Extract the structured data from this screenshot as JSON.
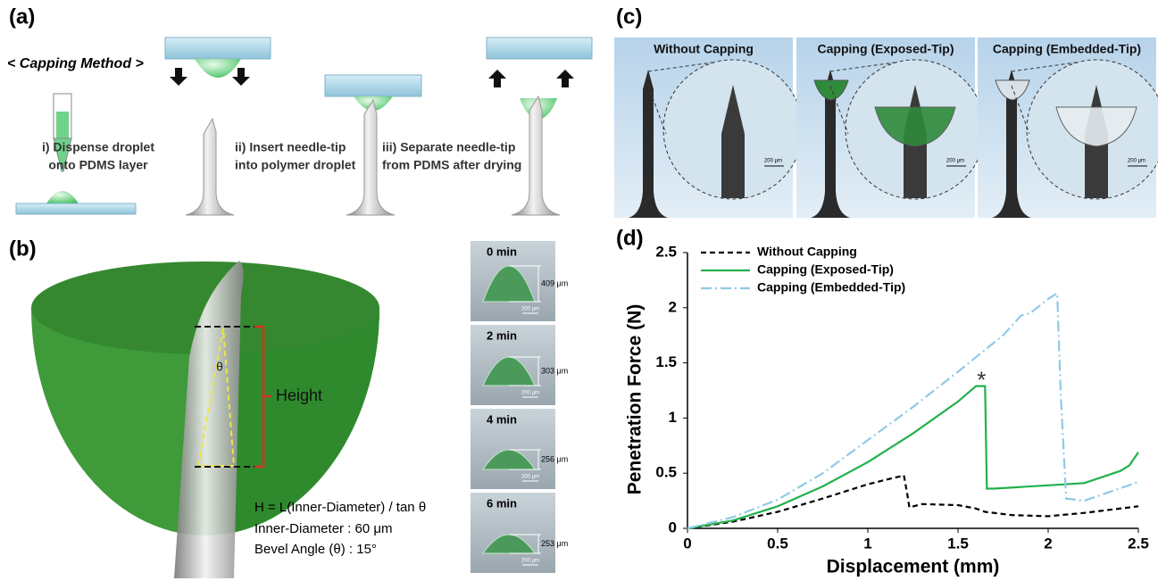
{
  "panel_a": {
    "label": "(a)",
    "method_title": "< Capping Method >",
    "steps": [
      [
        "i) Dispense droplet",
        "onto PDMS layer"
      ],
      [
        "ii) Insert needle-tip",
        "into polymer droplet"
      ],
      [
        "iii) Separate needle-tip",
        "from PDMS after drying"
      ]
    ]
  },
  "panel_b": {
    "label": "(b)",
    "theta": "θ",
    "height": "Height",
    "formula": [
      "H = L(Inner-Diameter) / tan θ",
      "Inner-Diameter : 60 μm",
      "Bevel Angle (θ) : 15°"
    ],
    "frames": [
      {
        "time": "0 min",
        "height": "409 μm",
        "scale": "200 μm"
      },
      {
        "time": "2 min",
        "height": "303 μm",
        "scale": "200 μm"
      },
      {
        "time": "4 min",
        "height": "256 μm",
        "scale": "200 μm"
      },
      {
        "time": "6 min",
        "height": "253 μm",
        "scale": "200 μm"
      }
    ]
  },
  "panel_c": {
    "label": "(c)",
    "photos": [
      {
        "title": "Without Capping",
        "scale": "200 μm"
      },
      {
        "title": "Capping (Exposed-Tip)",
        "scale": "200 μm"
      },
      {
        "title": "Capping (Embedded-Tip)",
        "scale": "200 μm"
      }
    ]
  },
  "panel_d": {
    "label": "(d)"
  },
  "chart_data": {
    "type": "line",
    "x_label": "Displacement (mm)",
    "y_label": "Penetration Force (N)",
    "xlim": [
      0,
      2.5
    ],
    "ylim": [
      0,
      2.5
    ],
    "xticks": [
      0,
      0.5,
      1,
      1.5,
      2,
      2.5
    ],
    "yticks": [
      0,
      0.5,
      1,
      1.5,
      2,
      2.5
    ],
    "grid": false,
    "legend": "upper-left",
    "annotations": [
      {
        "text": "*",
        "x": 1.63,
        "y": 1.38
      }
    ],
    "series": [
      {
        "name": "Without Capping",
        "color": "#000000",
        "dash": "6,4",
        "x": [
          0,
          0.25,
          0.5,
          0.75,
          1.0,
          1.1,
          1.2,
          1.22,
          1.23,
          1.3,
          1.5,
          1.6,
          1.65,
          1.8,
          2.0,
          2.2,
          2.5
        ],
        "values": [
          0,
          0.06,
          0.15,
          0.27,
          0.4,
          0.44,
          0.48,
          0.3,
          0.19,
          0.22,
          0.21,
          0.18,
          0.15,
          0.12,
          0.11,
          0.14,
          0.2
        ]
      },
      {
        "name": "Capping (Exposed-Tip)",
        "color": "#22b14c",
        "dash": "none",
        "x": [
          0,
          0.25,
          0.5,
          0.75,
          1.0,
          1.25,
          1.5,
          1.6,
          1.65,
          1.66,
          1.7,
          2.0,
          2.2,
          2.4,
          2.45,
          2.5
        ],
        "values": [
          0,
          0.07,
          0.2,
          0.38,
          0.6,
          0.86,
          1.15,
          1.29,
          1.29,
          0.36,
          0.36,
          0.39,
          0.41,
          0.52,
          0.57,
          0.69
        ]
      },
      {
        "name": "Capping (Embedded-Tip)",
        "color": "#8ecae6",
        "dash": "12,4,2,4",
        "x": [
          0,
          0.25,
          0.5,
          0.75,
          1.0,
          1.25,
          1.5,
          1.75,
          1.85,
          1.9,
          2.0,
          2.05,
          2.07,
          2.1,
          2.2,
          2.5
        ],
        "values": [
          0,
          0.1,
          0.26,
          0.5,
          0.8,
          1.1,
          1.42,
          1.75,
          1.93,
          1.95,
          2.08,
          2.13,
          1.2,
          0.27,
          0.25,
          0.42
        ]
      }
    ]
  }
}
